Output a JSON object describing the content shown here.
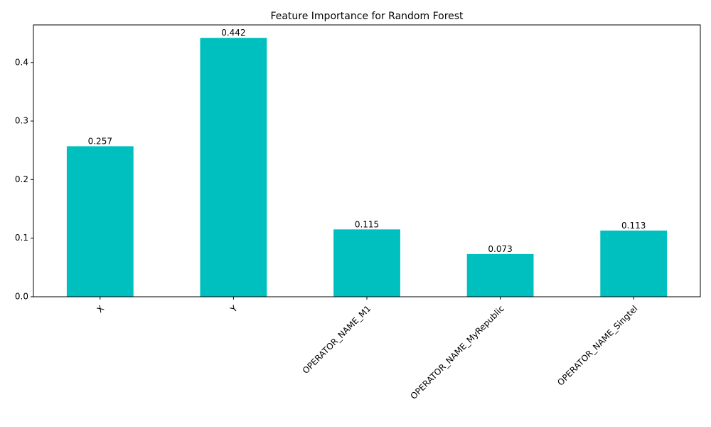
{
  "chart_data": {
    "type": "bar",
    "title": "Feature Importance for Random Forest",
    "xlabel": "",
    "ylabel": "",
    "categories": [
      "X",
      "Y",
      "OPERATOR_NAME_M1",
      "OPERATOR_NAME_MyRepublic",
      "OPERATOR_NAME_Singtel"
    ],
    "values": [
      0.257,
      0.442,
      0.115,
      0.073,
      0.113
    ],
    "data_labels": [
      "0.257",
      "0.442",
      "0.115",
      "0.073",
      "0.113"
    ],
    "ylim": [
      0,
      0.4641
    ],
    "yticks": [
      0.0,
      0.1,
      0.2,
      0.3,
      0.4
    ],
    "ytick_labels": [
      "0.0",
      "0.1",
      "0.2",
      "0.3",
      "0.4"
    ],
    "grid": false,
    "bar_color": "#00bfbf",
    "xtick_rotation": 45
  }
}
